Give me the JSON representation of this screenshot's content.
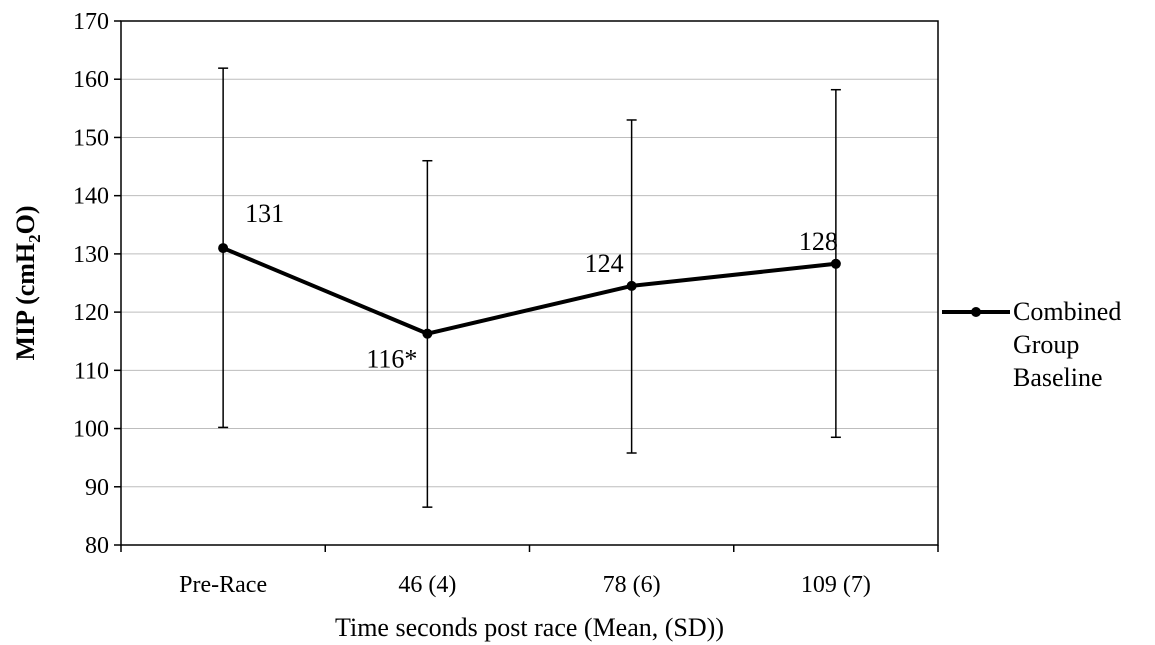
{
  "chart_data": {
    "type": "line",
    "categories": [
      "Pre-Race",
      "46 (4)",
      "78 (6)",
      "109 (7)"
    ],
    "series": [
      {
        "name": "Combined Group Baseline",
        "legend_lines": [
          "Combined",
          "Group",
          "Baseline"
        ],
        "values": [
          131,
          116,
          124,
          128
        ],
        "plot_values": [
          131,
          116.3,
          124.5,
          128.3
        ],
        "error_low": [
          100.2,
          86.5,
          95.8,
          98.5
        ],
        "error_high": [
          161.9,
          146,
          153,
          158.2
        ],
        "data_labels": [
          "131",
          "116*",
          "124",
          "128"
        ],
        "color": "#000000"
      }
    ],
    "xlabel": "Time seconds post race (Mean, (SD))",
    "ylabel": {
      "main": "MIP (cmH",
      "sub": "2",
      "tail": "O)"
    },
    "ylim": [
      80,
      170
    ],
    "yticks": [
      80,
      90,
      100,
      110,
      120,
      130,
      140,
      150,
      160,
      170
    ],
    "grid": true,
    "legend_position": "right"
  }
}
